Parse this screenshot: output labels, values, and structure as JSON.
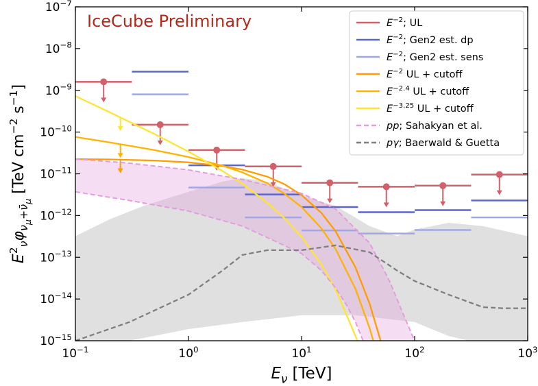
{
  "chart_data": {
    "type": "line",
    "xscale": "log",
    "yscale": "log",
    "xlim": [
      0.1,
      1000
    ],
    "ylim": [
      1e-15,
      1e-07
    ],
    "xticks": [
      {
        "value": 0.1,
        "label": [
          {
            "text": "10"
          },
          {
            "text": "−1",
            "shift": "sup"
          }
        ]
      },
      {
        "value": 1,
        "label": [
          {
            "text": "10"
          },
          {
            "text": "0",
            "shift": "sup"
          }
        ]
      },
      {
        "value": 10,
        "label": [
          {
            "text": "10"
          },
          {
            "text": "1",
            "shift": "sup"
          }
        ]
      },
      {
        "value": 100,
        "label": [
          {
            "text": "10"
          },
          {
            "text": "2",
            "shift": "sup"
          }
        ]
      },
      {
        "value": 1000,
        "label": [
          {
            "text": "10"
          },
          {
            "text": "3",
            "shift": "sup"
          }
        ]
      }
    ],
    "yticks": [
      {
        "value": 1e-15,
        "label": [
          {
            "text": "10"
          },
          {
            "text": "−15",
            "shift": "sup"
          }
        ]
      },
      {
        "value": 1e-14,
        "label": [
          {
            "text": "10"
          },
          {
            "text": "−14",
            "shift": "sup"
          }
        ]
      },
      {
        "value": 1e-13,
        "label": [
          {
            "text": "10"
          },
          {
            "text": "−13",
            "shift": "sup"
          }
        ]
      },
      {
        "value": 1e-12,
        "label": [
          {
            "text": "10"
          },
          {
            "text": "−12",
            "shift": "sup"
          }
        ]
      },
      {
        "value": 1e-11,
        "label": [
          {
            "text": "10"
          },
          {
            "text": "−11",
            "shift": "sup"
          }
        ]
      },
      {
        "value": 1e-10,
        "label": [
          {
            "text": "10"
          },
          {
            "text": "−10",
            "shift": "sup"
          }
        ]
      },
      {
        "value": 1e-09,
        "label": [
          {
            "text": "10"
          },
          {
            "text": "−9",
            "shift": "sup"
          }
        ]
      },
      {
        "value": 1e-08,
        "label": [
          {
            "text": "10"
          },
          {
            "text": "−8",
            "shift": "sup"
          }
        ]
      },
      {
        "value": 1e-07,
        "label": [
          {
            "text": "10"
          },
          {
            "text": "−7",
            "shift": "sup"
          }
        ]
      }
    ],
    "xlabel": [
      {
        "text": "E",
        "italic": true
      },
      {
        "text": "ν",
        "shift": "sub",
        "italic": true
      },
      {
        "text": " [TeV]"
      }
    ],
    "ylabel": [
      {
        "text": "E",
        "italic": true
      },
      {
        "text": "2",
        "shift": "sup"
      },
      {
        "text": "ν",
        "shift": "sub",
        "italic": true
      },
      {
        "text": "φ",
        "italic": true
      },
      {
        "text": "ν",
        "shift": "sub",
        "italic": true
      },
      {
        "text": "μ",
        "shift": "subsub",
        "italic": true
      },
      {
        "text": "+",
        "shift": "sub"
      },
      {
        "text": "ν̄",
        "shift": "sub",
        "italic": true
      },
      {
        "text": "μ",
        "shift": "subsub",
        "italic": true
      },
      {
        "text": " [TeV cm"
      },
      {
        "text": "−2",
        "shift": "sup"
      },
      {
        "text": " s"
      },
      {
        "text": "−1",
        "shift": "sup"
      },
      {
        "text": "]"
      }
    ],
    "annotation": {
      "text": "IceCube Preliminary",
      "color": "#b5281c"
    },
    "legend": "upper right",
    "background_band": {
      "color": "#e0e0e0",
      "upper": {
        "x": [
          0.1,
          0.2,
          0.4,
          1,
          2,
          3,
          5,
          10,
          20,
          40,
          70,
          100,
          200,
          400,
          1000
        ],
        "values": [
          3.2e-13,
          8.1e-13,
          1.7e-12,
          3.7e-12,
          6.5e-12,
          7.9e-12,
          6.5e-12,
          3e-12,
          1.7e-12,
          5.6e-13,
          3.2e-13,
          4.6e-13,
          6.7e-13,
          5.6e-13,
          3.2e-13
        ]
      },
      "lower": {
        "x": [
          0.1,
          0.3,
          1,
          3,
          10,
          30,
          100,
          200,
          300,
          1000
        ],
        "values": [
          1e-15,
          1e-15,
          1.9e-15,
          2.8e-15,
          4.1e-15,
          4.1e-15,
          2.8e-15,
          1.3e-15,
          1e-15,
          1e-15
        ]
      }
    },
    "series": [
      {
        "name": [
          {
            "text": "E",
            "italic": true
          },
          {
            "text": "−2",
            "shift": "sup"
          },
          {
            "text": ";  UL"
          }
        ],
        "style": "step_ul",
        "color": "#d1606a",
        "bins": [
          0.1,
          0.316,
          1,
          3.16,
          10,
          31.6,
          100,
          316,
          1000
        ],
        "values": [
          1.6e-09,
          1.5e-10,
          3.7e-11,
          1.5e-11,
          6.1e-12,
          4.9e-12,
          5.2e-12,
          9.6e-12
        ]
      },
      {
        "name": [
          {
            "text": "E",
            "italic": true
          },
          {
            "text": "−2",
            "shift": "sup"
          },
          {
            "text": ";  Gen2 est. dp"
          }
        ],
        "style": "step",
        "color": "#5a66c8",
        "bins": [
          0.1,
          0.316,
          1,
          3.16,
          10,
          31.6,
          100,
          316,
          1000
        ],
        "values": [
          null,
          2.8e-09,
          1.6e-11,
          3.2e-12,
          1.6e-12,
          1.2e-12,
          1.35e-12,
          2.3e-12
        ]
      },
      {
        "name": [
          {
            "text": "E",
            "italic": true
          },
          {
            "text": "−2",
            "shift": "sup"
          },
          {
            "text": ";  Gen2 est. sens"
          }
        ],
        "style": "step",
        "color": "#a1a7e2",
        "bins": [
          0.1,
          0.316,
          1,
          3.16,
          10,
          31.6,
          100,
          316,
          1000
        ],
        "values": [
          null,
          8e-10,
          4.7e-12,
          9e-13,
          4.4e-13,
          3.7e-13,
          4.5e-13,
          9e-13
        ]
      },
      {
        "name": [
          {
            "text": "E",
            "italic": true
          },
          {
            "text": "−2",
            "shift": "sup"
          },
          {
            "text": " UL + cutoff"
          }
        ],
        "style": "line",
        "color": "#ff9d00",
        "x": [
          0.1,
          0.2,
          0.5,
          1,
          2,
          3,
          5,
          7,
          10,
          15,
          20,
          30,
          40,
          50
        ],
        "values": [
          2.25e-11,
          2.21e-11,
          2.08e-11,
          1.88e-11,
          1.54e-11,
          1.26e-11,
          8.5e-12,
          5.7e-12,
          3.1e-12,
          1.15e-12,
          4.2e-13,
          5.7e-14,
          7.7e-15,
          1e-15
        ],
        "arrow": {
          "x": 0.25,
          "value": 2.2e-11
        }
      },
      {
        "name": [
          {
            "text": "E",
            "italic": true
          },
          {
            "text": "−2.4",
            "shift": "sup"
          },
          {
            "text": " UL + cutoff"
          }
        ],
        "style": "line",
        "color": "#ffb300",
        "x": [
          0.1,
          0.2,
          0.5,
          1,
          2,
          3,
          5,
          7,
          10,
          15,
          20,
          30,
          40,
          50
        ],
        "values": [
          7.63e-11,
          5.67e-11,
          3.7e-11,
          2.53e-11,
          1.56e-11,
          1.08e-11,
          5.9e-12,
          3.4e-12,
          1.6e-12,
          4.9e-13,
          1.58e-13,
          1.74e-14,
          2e-15,
          2.4e-16
        ],
        "arrow": {
          "x": 0.25,
          "value": 5.1e-11
        }
      },
      {
        "name": [
          {
            "text": "E",
            "italic": true
          },
          {
            "text": "−3.25",
            "shift": "sup"
          },
          {
            "text": " UL + cutoff"
          }
        ],
        "style": "line",
        "color": "#ffe433",
        "x": [
          0.1,
          0.2,
          0.5,
          1,
          2,
          3,
          5,
          7,
          10,
          15,
          20,
          30,
          32
        ],
        "values": [
          7.3e-10,
          3e-10,
          9e-11,
          3.4e-11,
          1.17e-11,
          5.8e-12,
          2e-12,
          8.8e-13,
          3.1e-13,
          6.7e-14,
          1.7e-14,
          1.3e-15,
          8.1e-16
        ],
        "arrow": {
          "x": 0.25,
          "value": 2.26e-10
        }
      },
      {
        "name": [
          {
            "text": "pp",
            "italic": true
          },
          {
            "text": "; Sahakyan et al."
          }
        ],
        "style": "band",
        "color": "#e39ddd",
        "upper": {
          "x": [
            0.1,
            0.3,
            1,
            3,
            10,
            20,
            40,
            60,
            80,
            100
          ],
          "values": [
            2.26e-11,
            1.8e-11,
            1.24e-11,
            7.3e-12,
            3.4e-12,
            1.43e-12,
            2.2e-13,
            2.7e-14,
            4.1e-15,
            1e-15
          ]
        },
        "lower": {
          "x": [
            0.1,
            0.3,
            1,
            3,
            10,
            15,
            20,
            25,
            30,
            35
          ],
          "values": [
            3.7e-12,
            2.3e-12,
            1.28e-12,
            5.6e-13,
            1.23e-13,
            4.8e-14,
            1.85e-14,
            7.2e-15,
            2.8e-15,
            1e-15
          ]
        }
      },
      {
        "name": [
          {
            "text": "pγ",
            "italic": true
          },
          {
            "text": "; Baerwald & Guetta"
          }
        ],
        "style": "dashed",
        "color": "#7f7f7f",
        "x": [
          0.1,
          0.3,
          1,
          2,
          3,
          5,
          10,
          20,
          40,
          70,
          100,
          200,
          400,
          600,
          1000
        ],
        "values": [
          1e-15,
          2.8e-15,
          1.27e-14,
          4.8e-14,
          1.14e-13,
          1.48e-13,
          1.48e-13,
          1.93e-13,
          1.32e-13,
          4.8e-14,
          2.7e-14,
          1.27e-14,
          6.4e-15,
          6e-15,
          6e-15
        ]
      }
    ]
  }
}
